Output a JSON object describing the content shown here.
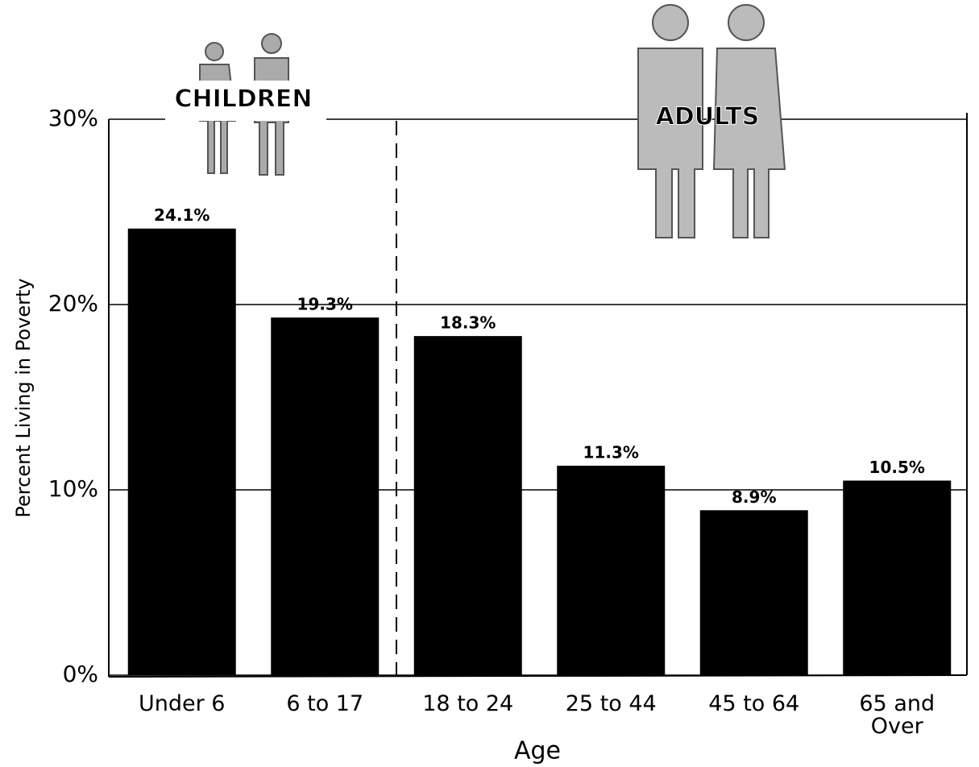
{
  "chart_data": {
    "type": "bar",
    "y_label": "Percent Living in Poverty",
    "x_label": "Age",
    "annotations": [
      "CHILDREN",
      "ADULTS"
    ],
    "categories": [
      "Under 6",
      "6 to 17",
      "18 to 24",
      "25 to 44",
      "45 to 64",
      "65 and Over"
    ],
    "values": [
      24.1,
      19.3,
      18.3,
      11.3,
      8.9,
      10.5
    ],
    "value_labels": [
      "24.1%",
      "19.3%",
      "18.3%",
      "11.3%",
      "8.9%",
      "10.5%"
    ],
    "color": "#000000",
    "ylim": [
      0,
      30
    ],
    "yticks": [
      {
        "value": 0,
        "label": "0%"
      },
      {
        "value": 10,
        "label": "10%"
      },
      {
        "value": 20,
        "label": "20%"
      },
      {
        "value": 30,
        "label": "30%"
      }
    ],
    "grid": true
  }
}
